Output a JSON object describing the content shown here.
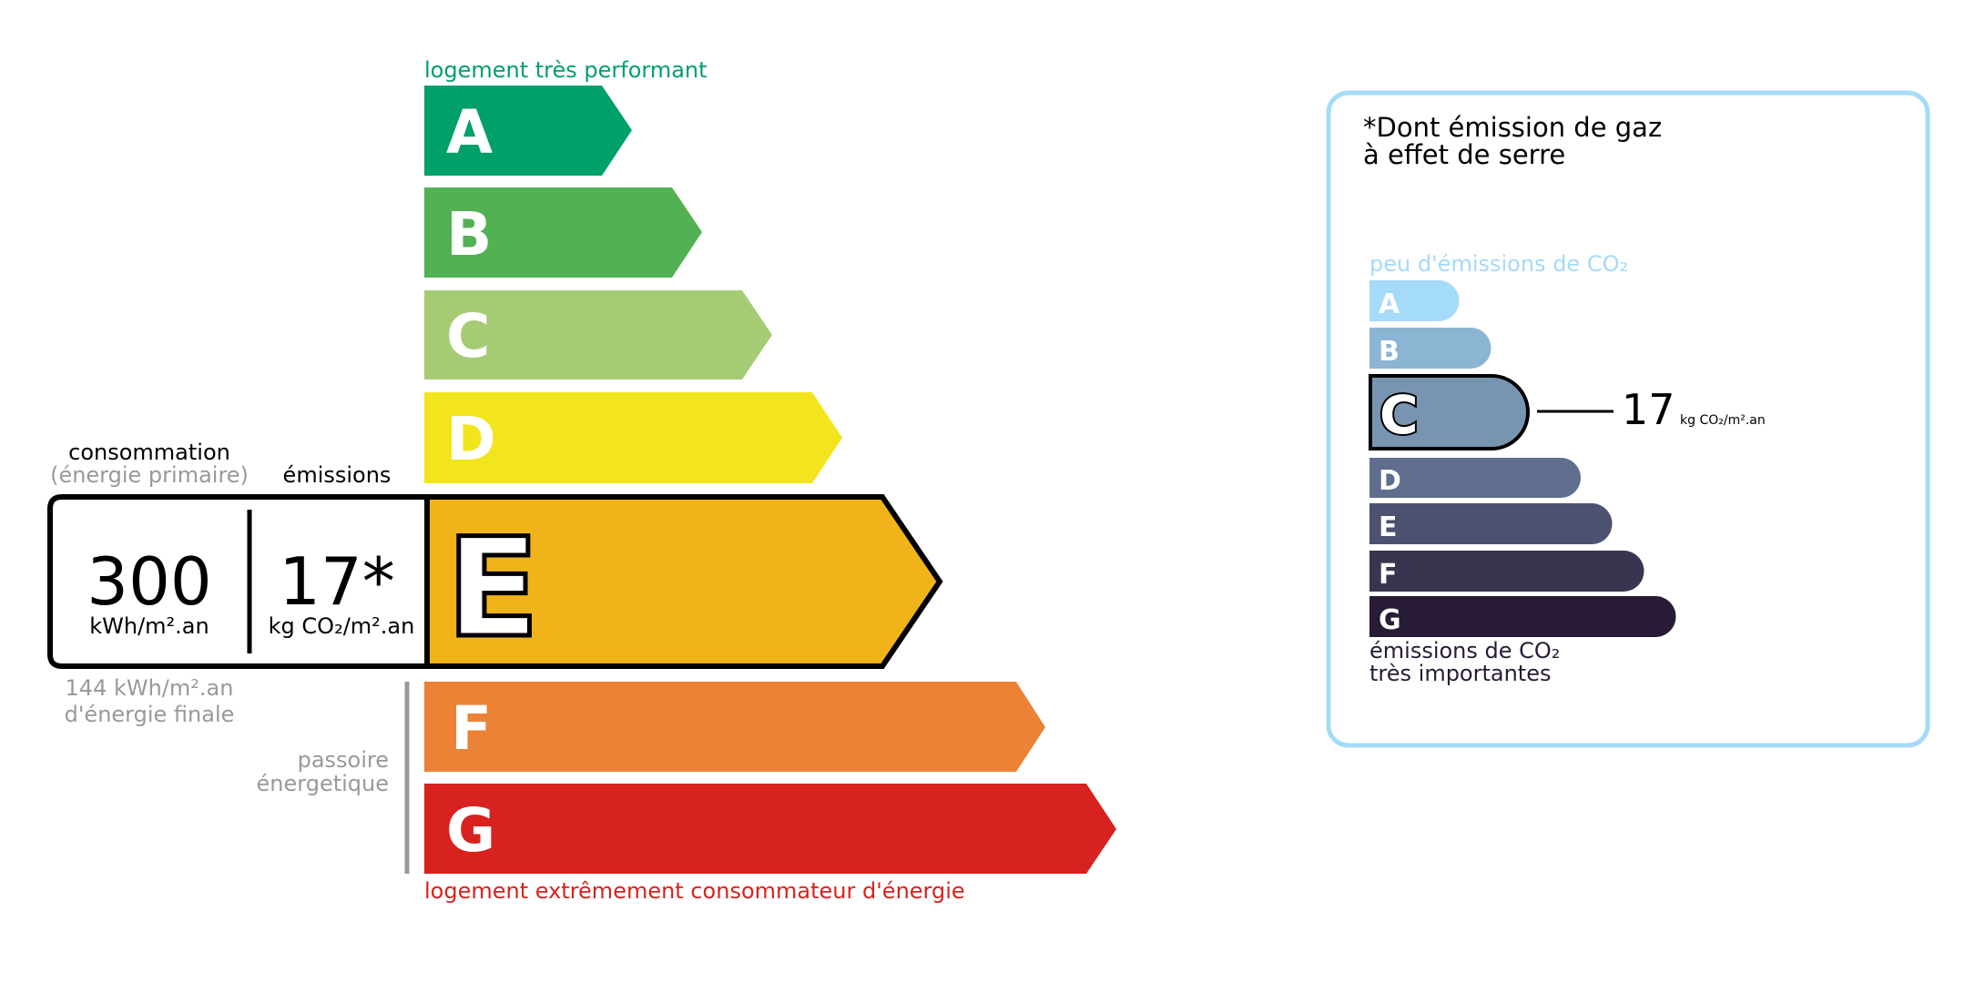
{
  "energy": {
    "top_label": "logement très performant",
    "bottom_label": "logement extrêmement consommateur d'énergie",
    "classes": [
      {
        "letter": "A",
        "color": "#00a06a"
      },
      {
        "letter": "B",
        "color": "#52b153"
      },
      {
        "letter": "C",
        "color": "#a5cc74"
      },
      {
        "letter": "D",
        "color": "#f2e51d"
      },
      {
        "letter": "E",
        "color": "#f0b41a"
      },
      {
        "letter": "F",
        "color": "#eb8235"
      },
      {
        "letter": "G",
        "color": "#d7221f"
      }
    ],
    "current_class": "E",
    "consumption_label": "consommation",
    "consumption_sublabel": "(énergie primaire)",
    "emissions_label": "émissions",
    "consumption_value": "300",
    "consumption_unit": "kWh/m².an",
    "emissions_value": "17*",
    "emissions_unit": "kg CO₂/m².an",
    "final_energy_line1": "144 kWh/m².an",
    "final_energy_line2": "d'énergie finale",
    "passoire_line1": "passoire",
    "passoire_line2": "énergetique",
    "top_label_color": "#00a06a",
    "bottom_label_color": "#d7221f"
  },
  "ghg": {
    "title_line1": "*Dont émission de gaz",
    "title_line2": "à effet de serre",
    "top_label": "peu d'émissions de CO₂",
    "bottom_label_line1": "émissions de CO₂",
    "bottom_label_line2": "très importantes",
    "classes": [
      {
        "letter": "A",
        "color": "#a4dbf8"
      },
      {
        "letter": "B",
        "color": "#8cb4d3"
      },
      {
        "letter": "C",
        "color": "#7794b1"
      },
      {
        "letter": "D",
        "color": "#5f6e8e"
      },
      {
        "letter": "E",
        "color": "#4d5170"
      },
      {
        "letter": "F",
        "color": "#393551"
      },
      {
        "letter": "G",
        "color": "#281b35"
      }
    ],
    "current_class": "C",
    "value": "17",
    "unit": "kg CO₂/m².an",
    "border_color": "#a4dbf8"
  }
}
